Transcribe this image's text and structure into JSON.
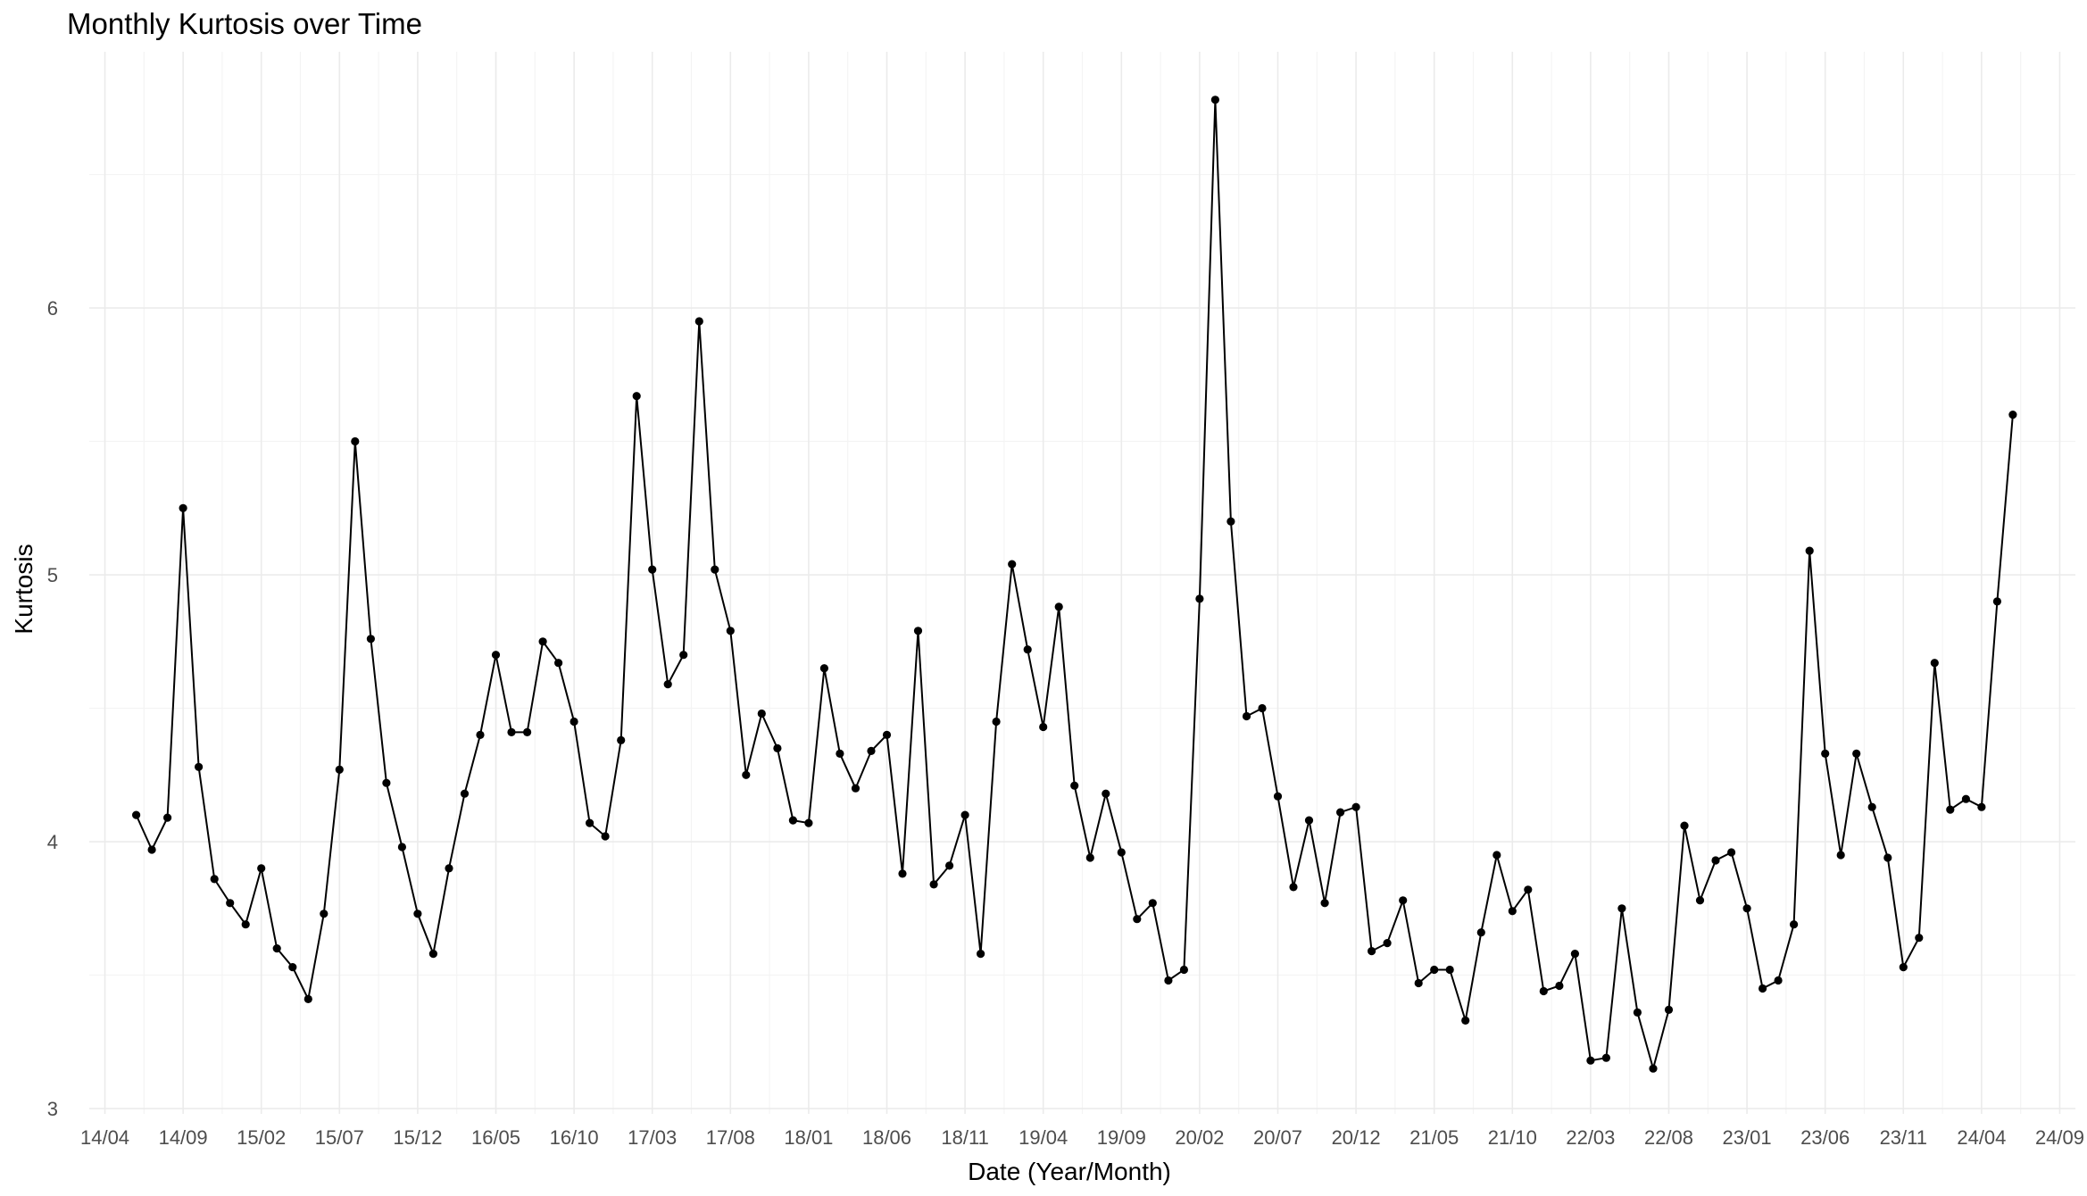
{
  "chart_data": {
    "type": "line",
    "title": "Monthly Kurtosis over Time",
    "xlabel": "Date (Year/Month)",
    "ylabel": "Kurtosis",
    "x_axis": {
      "type": "date",
      "range": [
        "2014-03",
        "2024-10"
      ],
      "tick_values": [
        "2014-04",
        "2014-09",
        "2015-02",
        "2015-07",
        "2015-12",
        "2016-05",
        "2016-10",
        "2017-03",
        "2017-08",
        "2018-01",
        "2018-06",
        "2018-11",
        "2019-04",
        "2019-09",
        "2020-02",
        "2020-07",
        "2020-12",
        "2021-05",
        "2021-10",
        "2022-03",
        "2022-08",
        "2023-01",
        "2023-06",
        "2023-11",
        "2024-04",
        "2024-09"
      ],
      "tick_labels": [
        "14/04",
        "14/09",
        "15/02",
        "15/07",
        "15/12",
        "16/05",
        "16/10",
        "17/03",
        "17/08",
        "18/01",
        "18/06",
        "18/11",
        "19/04",
        "19/09",
        "20/02",
        "20/07",
        "20/12",
        "21/05",
        "21/10",
        "22/03",
        "22/08",
        "23/01",
        "23/06",
        "23/11",
        "24/04",
        "24/09"
      ]
    },
    "y_axis": {
      "range": [
        2.98,
        6.96
      ],
      "tick_values": [
        3,
        4,
        5,
        6
      ],
      "tick_labels": [
        "3",
        "4",
        "5",
        "6"
      ]
    },
    "grid": true,
    "markers": true,
    "series": [
      {
        "x": [
          "2014-06",
          "2014-07",
          "2014-08",
          "2014-09",
          "2014-10",
          "2014-11",
          "2014-12",
          "2015-01",
          "2015-02",
          "2015-03",
          "2015-04",
          "2015-05",
          "2015-06",
          "2015-07",
          "2015-08",
          "2015-09",
          "2015-10",
          "2015-11",
          "2015-12",
          "2016-01",
          "2016-02",
          "2016-03",
          "2016-04",
          "2016-05",
          "2016-06",
          "2016-07",
          "2016-08",
          "2016-09",
          "2016-10",
          "2016-11",
          "2016-12",
          "2017-01",
          "2017-02",
          "2017-03",
          "2017-04",
          "2017-05",
          "2017-06",
          "2017-07",
          "2017-08",
          "2017-09",
          "2017-10",
          "2017-11",
          "2017-12",
          "2018-01",
          "2018-02",
          "2018-03",
          "2018-04",
          "2018-05",
          "2018-06",
          "2018-07",
          "2018-08",
          "2018-09",
          "2018-10",
          "2018-11",
          "2018-12",
          "2019-01",
          "2019-02",
          "2019-03",
          "2019-04",
          "2019-05",
          "2019-06",
          "2019-07",
          "2019-08",
          "2019-09",
          "2019-10",
          "2019-11",
          "2019-12",
          "2020-01",
          "2020-02",
          "2020-03",
          "2020-04",
          "2020-05",
          "2020-06",
          "2020-07",
          "2020-08",
          "2020-09",
          "2020-10",
          "2020-11",
          "2020-12",
          "2021-01",
          "2021-02",
          "2021-03",
          "2021-04",
          "2021-05",
          "2021-06",
          "2021-07",
          "2021-08",
          "2021-09",
          "2021-10",
          "2021-11",
          "2021-12",
          "2022-01",
          "2022-02",
          "2022-03",
          "2022-04",
          "2022-05",
          "2022-06",
          "2022-07",
          "2022-08",
          "2022-09",
          "2022-10",
          "2022-11",
          "2022-12",
          "2023-01",
          "2023-02",
          "2023-03",
          "2023-04",
          "2023-05",
          "2023-06",
          "2023-07",
          "2023-08",
          "2023-09",
          "2023-10",
          "2023-11",
          "2023-12",
          "2024-01",
          "2024-02",
          "2024-03",
          "2024-04",
          "2024-05",
          "2024-06"
        ],
        "y": [
          4.1,
          3.97,
          4.09,
          5.25,
          4.28,
          3.86,
          3.77,
          3.69,
          3.9,
          3.6,
          3.53,
          3.41,
          3.73,
          4.27,
          5.5,
          4.76,
          4.22,
          3.98,
          3.73,
          3.58,
          3.9,
          4.18,
          4.4,
          4.7,
          4.41,
          4.41,
          4.75,
          4.67,
          4.45,
          4.07,
          4.02,
          4.38,
          5.67,
          5.02,
          4.59,
          4.7,
          5.95,
          5.02,
          4.79,
          4.25,
          4.48,
          4.35,
          4.08,
          4.07,
          4.65,
          4.33,
          4.2,
          4.34,
          4.4,
          3.88,
          4.79,
          3.84,
          3.91,
          4.1,
          3.58,
          4.45,
          5.04,
          4.72,
          4.43,
          4.88,
          4.21,
          3.94,
          4.18,
          3.96,
          3.71,
          3.77,
          3.48,
          3.52,
          4.91,
          6.78,
          5.2,
          4.47,
          4.5,
          4.17,
          3.83,
          4.08,
          3.77,
          4.11,
          4.13,
          3.59,
          3.62,
          3.78,
          3.47,
          3.52,
          3.52,
          3.33,
          3.66,
          3.95,
          3.74,
          3.82,
          3.44,
          3.46,
          3.58,
          3.18,
          3.19,
          3.75,
          3.36,
          3.15,
          3.37,
          4.06,
          3.78,
          3.93,
          3.96,
          3.75,
          3.45,
          3.48,
          3.69,
          5.09,
          4.33,
          3.95,
          4.33,
          4.13,
          3.94,
          3.53,
          3.64,
          4.67,
          4.12,
          4.16,
          4.13,
          4.9,
          5.6
        ]
      }
    ]
  }
}
